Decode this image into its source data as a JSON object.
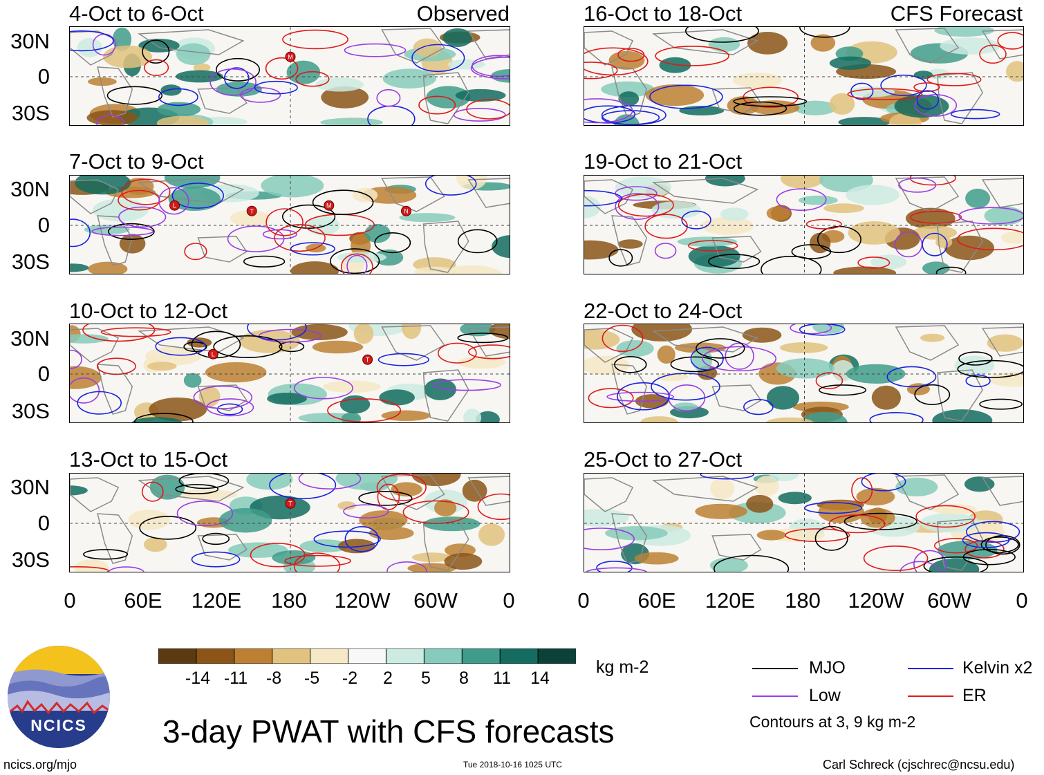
{
  "map": {
    "title": "3-day PWAT with CFS forecasts",
    "observed_label": "Observed",
    "forecast_label": "CFS Forecast",
    "latitude_labels": [
      "30N",
      "0",
      "30S"
    ],
    "longitude_labels": [
      "0",
      "60E",
      "120E",
      "180",
      "120W",
      "60W",
      "0"
    ],
    "panels_left": [
      {
        "period": "4-Oct to 6-Oct"
      },
      {
        "period": "7-Oct to 9-Oct"
      },
      {
        "period": "10-Oct to 12-Oct"
      },
      {
        "period": "13-Oct to 15-Oct"
      }
    ],
    "panels_right": [
      {
        "period": "16-Oct to 18-Oct"
      },
      {
        "period": "19-Oct to 21-Oct"
      },
      {
        "period": "22-Oct to 24-Oct"
      },
      {
        "period": "25-Oct to 27-Oct"
      }
    ],
    "storm_markers": [
      {
        "panel": 0,
        "letter": "M"
      },
      {
        "panel": 1,
        "letter": "L"
      },
      {
        "panel": 1,
        "letter": "T"
      },
      {
        "panel": 1,
        "letter": "M"
      },
      {
        "panel": 1,
        "letter": "N"
      },
      {
        "panel": 2,
        "letter": "L"
      },
      {
        "panel": 2,
        "letter": "T"
      },
      {
        "panel": 3,
        "letter": "T"
      }
    ]
  },
  "colorbar": {
    "unit": "kg m-2",
    "ticks": [
      "-14",
      "-11",
      "-8",
      "-5",
      "-2",
      "2",
      "5",
      "8",
      "11",
      "14"
    ],
    "colors": [
      "#5c3a11",
      "#8b5517",
      "#bd8033",
      "#e2c27f",
      "#f6e8c6",
      "#f8f8f8",
      "#cdebe3",
      "#86cbbb",
      "#3f9c8b",
      "#136c5f",
      "#0b4139"
    ]
  },
  "legend": {
    "items": [
      {
        "label": "MJO",
        "color": "#000000"
      },
      {
        "label": "Kelvin x2",
        "color": "#1a22e0"
      },
      {
        "label": "Low",
        "color": "#9a3ce6"
      },
      {
        "label": "ER",
        "color": "#e01a1a"
      }
    ],
    "note": "Contours at 3, 9 kg m-2"
  },
  "footer": {
    "logo_text": "NCICS",
    "url": "ncics.org/mjo",
    "timestamp": "Tue 2018-10-16 1025 UTC",
    "credit": "Carl Schreck (cjschrec@ncsu.edu)"
  }
}
